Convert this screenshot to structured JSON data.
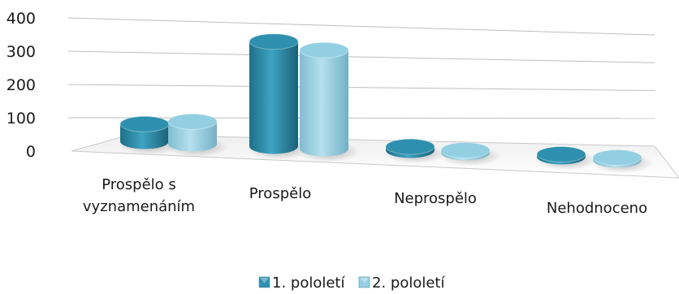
{
  "chart_data": {
    "type": "bar",
    "style": "3d-cylinder",
    "categories": [
      "Prospělo s vyznamenáním",
      "Prospělo",
      "Neprospělo",
      "Nehodnoceno"
    ],
    "category_lines": [
      [
        "Prospělo  s",
        "vyznamenáním"
      ],
      [
        "Prospělo"
      ],
      [
        "Neprospělo"
      ],
      [
        "Nehodnoceno"
      ]
    ],
    "series": [
      {
        "name": "1. pololetí",
        "values": [
          53,
          322,
          11,
          2
        ],
        "color": "#2e90ae"
      },
      {
        "name": "2. pololetí",
        "values": [
          68,
          303,
          6,
          1
        ],
        "color": "#93cfe2"
      }
    ],
    "ylim": [
      0,
      400
    ],
    "yticks": [
      "0",
      "100",
      "200",
      "300",
      "400"
    ],
    "grid": true,
    "legend": "bottom"
  }
}
